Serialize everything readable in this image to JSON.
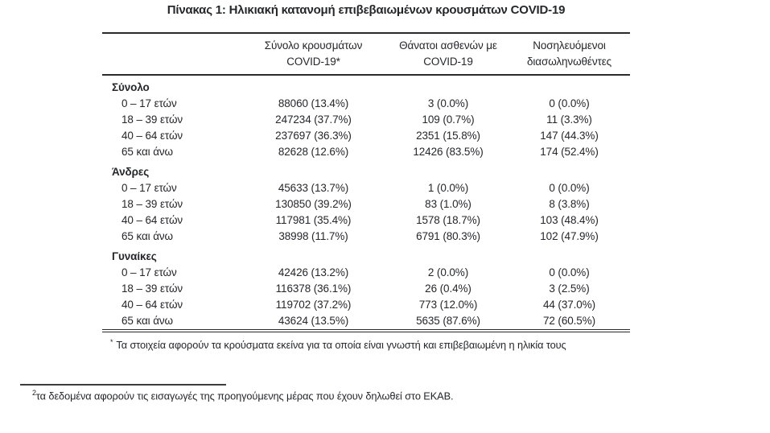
{
  "page": {
    "title": "Πίνακας 1: Ηλικιακή κατανομή επιβεβαιωμένων κρουσμάτων COVID-19"
  },
  "table": {
    "columns": [
      {
        "line1": "Σύνολο κρουσμάτων",
        "line2": "COVID-19*"
      },
      {
        "line1": "Θάνατοι ασθενών με",
        "line2": "COVID-19"
      },
      {
        "line1": "Νοσηλευόμενοι",
        "line2": "διασωληνωθέντες"
      }
    ],
    "groups": [
      {
        "label": "Σύνολο",
        "rows": [
          {
            "label": "0 – 17 ετών",
            "cases": "88060 (13.4%)",
            "deaths": "3 (0.0%)",
            "intubated": "0 (0.0%)"
          },
          {
            "label": "18 – 39 ετών",
            "cases": "247234 (37.7%)",
            "deaths": "109 (0.7%)",
            "intubated": "11 (3.3%)"
          },
          {
            "label": "40 – 64 ετών",
            "cases": "237697 (36.3%)",
            "deaths": "2351 (15.8%)",
            "intubated": "147 (44.3%)"
          },
          {
            "label": "65 και άνω",
            "cases": "82628 (12.6%)",
            "deaths": "12426 (83.5%)",
            "intubated": "174 (52.4%)"
          }
        ]
      },
      {
        "label": "Άνδρες",
        "rows": [
          {
            "label": "0 – 17 ετών",
            "cases": "45633 (13.7%)",
            "deaths": "1 (0.0%)",
            "intubated": "0 (0.0%)"
          },
          {
            "label": "18 – 39 ετών",
            "cases": "130850 (39.2%)",
            "deaths": "83 (1.0%)",
            "intubated": "8 (3.8%)"
          },
          {
            "label": "40 – 64 ετών",
            "cases": "117981 (35.4%)",
            "deaths": "1578 (18.7%)",
            "intubated": "103 (48.4%)"
          },
          {
            "label": "65 και άνω",
            "cases": "38998 (11.7%)",
            "deaths": "6791 (80.3%)",
            "intubated": "102 (47.9%)"
          }
        ]
      },
      {
        "label": "Γυναίκες",
        "rows": [
          {
            "label": "0 – 17 ετών",
            "cases": "42426 (13.2%)",
            "deaths": "2 (0.0%)",
            "intubated": "0 (0.0%)"
          },
          {
            "label": "18 – 39 ετών",
            "cases": "116378 (36.1%)",
            "deaths": "26 (0.4%)",
            "intubated": "3 (2.5%)"
          },
          {
            "label": "40 – 64 ετών",
            "cases": "119702 (37.2%)",
            "deaths": "773 (12.0%)",
            "intubated": "44 (37.0%)"
          },
          {
            "label": "65 και άνω",
            "cases": "43624 (13.5%)",
            "deaths": "5635 (87.6%)",
            "intubated": "72 (60.5%)"
          }
        ]
      }
    ],
    "footnote_marker": "*",
    "footnote_text": "Τα στοιχεία αφορούν τα κρούσματα εκείνα για τα οποία είναι γνωστή και επιβεβαιωμένη η ηλικία τους"
  },
  "page_footnote": {
    "marker": "2",
    "text": "τα δεδομένα αφορούν τις εισαγωγές της προηγούμενης μέρας που έχουν δηλωθεί στο ΕΚΑΒ."
  },
  "colors": {
    "text": "#26272b",
    "rule": "#2b2b2b",
    "background": "#ffffff"
  }
}
